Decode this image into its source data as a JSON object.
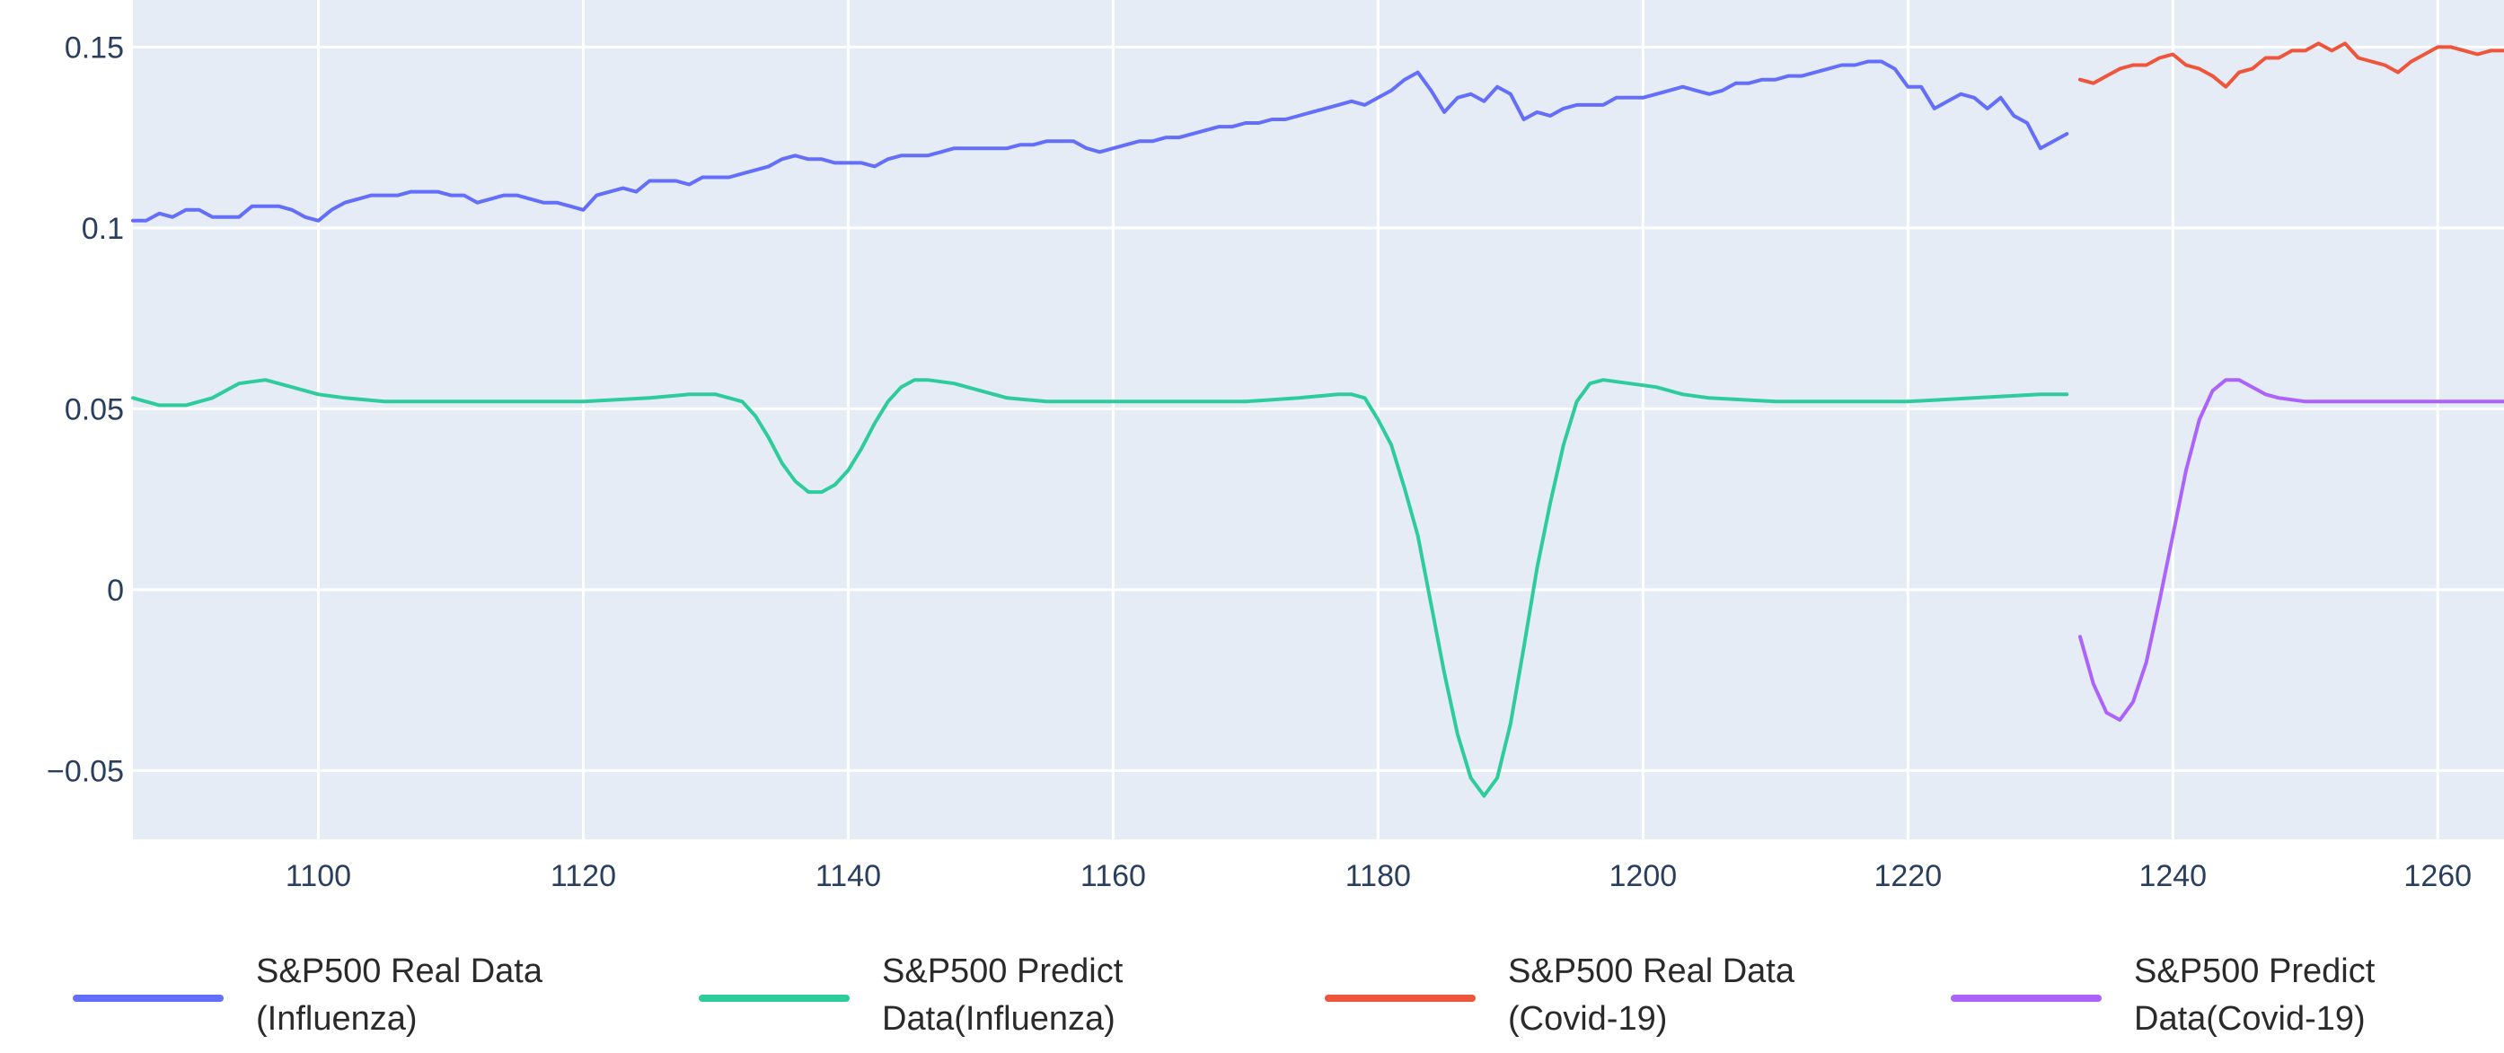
{
  "chart_data": {
    "type": "line",
    "title": "",
    "xlabel": "",
    "ylabel": "",
    "xlim": [
      1086,
      1265
    ],
    "ylim": [
      -0.069,
      0.163
    ],
    "grid": true,
    "legend_placement": "bottom",
    "plot_bg": "#e5ecf6",
    "grid_color": "#ffffff",
    "x_ticks": [
      1100,
      1120,
      1140,
      1160,
      1180,
      1200,
      1220,
      1240,
      1260
    ],
    "x_tick_labels": [
      "1100",
      "1120",
      "1140",
      "1160",
      "1180",
      "1200",
      "1220",
      "1240",
      "1260"
    ],
    "y_ticks": [
      -0.05,
      0,
      0.05,
      0.1,
      0.15
    ],
    "y_tick_labels": [
      "−0.05",
      "0",
      "0.05",
      "0.1",
      "0.15"
    ],
    "series": [
      {
        "name_line1": "S&P500 Real Data",
        "name_line2": "(Influenza)",
        "color": "#636efa",
        "points": [
          [
            1086,
            0.102
          ],
          [
            1087,
            0.102
          ],
          [
            1088,
            0.104
          ],
          [
            1089,
            0.103
          ],
          [
            1090,
            0.105
          ],
          [
            1091,
            0.105
          ],
          [
            1092,
            0.103
          ],
          [
            1093,
            0.103
          ],
          [
            1094,
            0.103
          ],
          [
            1095,
            0.106
          ],
          [
            1096,
            0.106
          ],
          [
            1097,
            0.106
          ],
          [
            1098,
            0.105
          ],
          [
            1099,
            0.103
          ],
          [
            1100,
            0.102
          ],
          [
            1101,
            0.105
          ],
          [
            1102,
            0.107
          ],
          [
            1103,
            0.108
          ],
          [
            1104,
            0.109
          ],
          [
            1105,
            0.109
          ],
          [
            1106,
            0.109
          ],
          [
            1107,
            0.11
          ],
          [
            1108,
            0.11
          ],
          [
            1109,
            0.11
          ],
          [
            1110,
            0.109
          ],
          [
            1111,
            0.109
          ],
          [
            1112,
            0.107
          ],
          [
            1113,
            0.108
          ],
          [
            1114,
            0.109
          ],
          [
            1115,
            0.109
          ],
          [
            1116,
            0.108
          ],
          [
            1117,
            0.107
          ],
          [
            1118,
            0.107
          ],
          [
            1119,
            0.106
          ],
          [
            1120,
            0.105
          ],
          [
            1121,
            0.109
          ],
          [
            1122,
            0.11
          ],
          [
            1123,
            0.111
          ],
          [
            1124,
            0.11
          ],
          [
            1125,
            0.113
          ],
          [
            1126,
            0.113
          ],
          [
            1127,
            0.113
          ],
          [
            1128,
            0.112
          ],
          [
            1129,
            0.114
          ],
          [
            1130,
            0.114
          ],
          [
            1131,
            0.114
          ],
          [
            1132,
            0.115
          ],
          [
            1133,
            0.116
          ],
          [
            1134,
            0.117
          ],
          [
            1135,
            0.119
          ],
          [
            1136,
            0.12
          ],
          [
            1137,
            0.119
          ],
          [
            1138,
            0.119
          ],
          [
            1139,
            0.118
          ],
          [
            1140,
            0.118
          ],
          [
            1141,
            0.118
          ],
          [
            1142,
            0.117
          ],
          [
            1143,
            0.119
          ],
          [
            1144,
            0.12
          ],
          [
            1145,
            0.12
          ],
          [
            1146,
            0.12
          ],
          [
            1147,
            0.121
          ],
          [
            1148,
            0.122
          ],
          [
            1149,
            0.122
          ],
          [
            1150,
            0.122
          ],
          [
            1151,
            0.122
          ],
          [
            1152,
            0.122
          ],
          [
            1153,
            0.123
          ],
          [
            1154,
            0.123
          ],
          [
            1155,
            0.124
          ],
          [
            1156,
            0.124
          ],
          [
            1157,
            0.124
          ],
          [
            1158,
            0.122
          ],
          [
            1159,
            0.121
          ],
          [
            1160,
            0.122
          ],
          [
            1161,
            0.123
          ],
          [
            1162,
            0.124
          ],
          [
            1163,
            0.124
          ],
          [
            1164,
            0.125
          ],
          [
            1165,
            0.125
          ],
          [
            1166,
            0.126
          ],
          [
            1167,
            0.127
          ],
          [
            1168,
            0.128
          ],
          [
            1169,
            0.128
          ],
          [
            1170,
            0.129
          ],
          [
            1171,
            0.129
          ],
          [
            1172,
            0.13
          ],
          [
            1173,
            0.13
          ],
          [
            1174,
            0.131
          ],
          [
            1175,
            0.132
          ],
          [
            1176,
            0.133
          ],
          [
            1177,
            0.134
          ],
          [
            1178,
            0.135
          ],
          [
            1179,
            0.134
          ],
          [
            1180,
            0.136
          ],
          [
            1181,
            0.138
          ],
          [
            1182,
            0.141
          ],
          [
            1183,
            0.143
          ],
          [
            1184,
            0.138
          ],
          [
            1185,
            0.132
          ],
          [
            1186,
            0.136
          ],
          [
            1187,
            0.137
          ],
          [
            1188,
            0.135
          ],
          [
            1189,
            0.139
          ],
          [
            1190,
            0.137
          ],
          [
            1191,
            0.13
          ],
          [
            1192,
            0.132
          ],
          [
            1193,
            0.131
          ],
          [
            1194,
            0.133
          ],
          [
            1195,
            0.134
          ],
          [
            1196,
            0.134
          ],
          [
            1197,
            0.134
          ],
          [
            1198,
            0.136
          ],
          [
            1199,
            0.136
          ],
          [
            1200,
            0.136
          ],
          [
            1201,
            0.137
          ],
          [
            1202,
            0.138
          ],
          [
            1203,
            0.139
          ],
          [
            1204,
            0.138
          ],
          [
            1205,
            0.137
          ],
          [
            1206,
            0.138
          ],
          [
            1207,
            0.14
          ],
          [
            1208,
            0.14
          ],
          [
            1209,
            0.141
          ],
          [
            1210,
            0.141
          ],
          [
            1211,
            0.142
          ],
          [
            1212,
            0.142
          ],
          [
            1213,
            0.143
          ],
          [
            1214,
            0.144
          ],
          [
            1215,
            0.145
          ],
          [
            1216,
            0.145
          ],
          [
            1217,
            0.146
          ],
          [
            1218,
            0.146
          ],
          [
            1219,
            0.144
          ],
          [
            1220,
            0.139
          ],
          [
            1221,
            0.139
          ],
          [
            1222,
            0.133
          ],
          [
            1223,
            0.135
          ],
          [
            1224,
            0.137
          ],
          [
            1225,
            0.136
          ],
          [
            1226,
            0.133
          ],
          [
            1227,
            0.136
          ],
          [
            1228,
            0.131
          ],
          [
            1229,
            0.129
          ],
          [
            1230,
            0.122
          ],
          [
            1231,
            0.124
          ],
          [
            1232,
            0.126
          ]
        ]
      },
      {
        "name_line1": "S&P500 Predict",
        "name_line2": "Data(Influenza)",
        "color": "#2ecc9b",
        "points": [
          [
            1086,
            0.053
          ],
          [
            1088,
            0.051
          ],
          [
            1090,
            0.051
          ],
          [
            1092,
            0.053
          ],
          [
            1094,
            0.057
          ],
          [
            1096,
            0.058
          ],
          [
            1098,
            0.056
          ],
          [
            1100,
            0.054
          ],
          [
            1102,
            0.053
          ],
          [
            1105,
            0.052
          ],
          [
            1110,
            0.052
          ],
          [
            1115,
            0.052
          ],
          [
            1120,
            0.052
          ],
          [
            1125,
            0.053
          ],
          [
            1128,
            0.054
          ],
          [
            1130,
            0.054
          ],
          [
            1132,
            0.052
          ],
          [
            1133,
            0.048
          ],
          [
            1134,
            0.042
          ],
          [
            1135,
            0.035
          ],
          [
            1136,
            0.03
          ],
          [
            1137,
            0.027
          ],
          [
            1138,
            0.027
          ],
          [
            1139,
            0.029
          ],
          [
            1140,
            0.033
          ],
          [
            1141,
            0.039
          ],
          [
            1142,
            0.046
          ],
          [
            1143,
            0.052
          ],
          [
            1144,
            0.056
          ],
          [
            1145,
            0.058
          ],
          [
            1146,
            0.058
          ],
          [
            1148,
            0.057
          ],
          [
            1150,
            0.055
          ],
          [
            1152,
            0.053
          ],
          [
            1155,
            0.052
          ],
          [
            1160,
            0.052
          ],
          [
            1165,
            0.052
          ],
          [
            1170,
            0.052
          ],
          [
            1174,
            0.053
          ],
          [
            1177,
            0.054
          ],
          [
            1178,
            0.054
          ],
          [
            1179,
            0.053
          ],
          [
            1180,
            0.047
          ],
          [
            1181,
            0.04
          ],
          [
            1182,
            0.028
          ],
          [
            1183,
            0.015
          ],
          [
            1184,
            -0.004
          ],
          [
            1185,
            -0.023
          ],
          [
            1186,
            -0.04
          ],
          [
            1187,
            -0.052
          ],
          [
            1188,
            -0.057
          ],
          [
            1189,
            -0.052
          ],
          [
            1190,
            -0.037
          ],
          [
            1191,
            -0.016
          ],
          [
            1192,
            0.006
          ],
          [
            1193,
            0.024
          ],
          [
            1194,
            0.04
          ],
          [
            1195,
            0.052
          ],
          [
            1196,
            0.057
          ],
          [
            1197,
            0.058
          ],
          [
            1199,
            0.057
          ],
          [
            1201,
            0.056
          ],
          [
            1203,
            0.054
          ],
          [
            1205,
            0.053
          ],
          [
            1210,
            0.052
          ],
          [
            1215,
            0.052
          ],
          [
            1220,
            0.052
          ],
          [
            1225,
            0.053
          ],
          [
            1230,
            0.054
          ],
          [
            1232,
            0.054
          ]
        ]
      },
      {
        "name_line1": "S&P500 Real Data",
        "name_line2": "(Covid-19)",
        "color": "#ef553b",
        "points": [
          [
            1233,
            0.141
          ],
          [
            1234,
            0.14
          ],
          [
            1235,
            0.142
          ],
          [
            1236,
            0.144
          ],
          [
            1237,
            0.145
          ],
          [
            1238,
            0.145
          ],
          [
            1239,
            0.147
          ],
          [
            1240,
            0.148
          ],
          [
            1241,
            0.145
          ],
          [
            1242,
            0.144
          ],
          [
            1243,
            0.142
          ],
          [
            1244,
            0.139
          ],
          [
            1245,
            0.143
          ],
          [
            1246,
            0.144
          ],
          [
            1247,
            0.147
          ],
          [
            1248,
            0.147
          ],
          [
            1249,
            0.149
          ],
          [
            1250,
            0.149
          ],
          [
            1251,
            0.151
          ],
          [
            1252,
            0.149
          ],
          [
            1253,
            0.151
          ],
          [
            1254,
            0.147
          ],
          [
            1255,
            0.146
          ],
          [
            1256,
            0.145
          ],
          [
            1257,
            0.143
          ],
          [
            1258,
            0.146
          ],
          [
            1259,
            0.148
          ],
          [
            1260,
            0.15
          ],
          [
            1261,
            0.15
          ],
          [
            1262,
            0.149
          ],
          [
            1263,
            0.148
          ],
          [
            1264,
            0.149
          ],
          [
            1265,
            0.149
          ]
        ]
      },
      {
        "name_line1": "S&P500 Predict",
        "name_line2": "Data(Covid-19)",
        "color": "#ab63fa",
        "points": [
          [
            1233,
            -0.013
          ],
          [
            1234,
            -0.026
          ],
          [
            1235,
            -0.034
          ],
          [
            1236,
            -0.036
          ],
          [
            1237,
            -0.031
          ],
          [
            1238,
            -0.02
          ],
          [
            1239,
            -0.003
          ],
          [
            1240,
            0.015
          ],
          [
            1241,
            0.033
          ],
          [
            1242,
            0.047
          ],
          [
            1243,
            0.055
          ],
          [
            1244,
            0.058
          ],
          [
            1245,
            0.058
          ],
          [
            1246,
            0.056
          ],
          [
            1247,
            0.054
          ],
          [
            1248,
            0.053
          ],
          [
            1250,
            0.052
          ],
          [
            1255,
            0.052
          ],
          [
            1260,
            0.052
          ],
          [
            1265,
            0.052
          ]
        ]
      }
    ]
  }
}
